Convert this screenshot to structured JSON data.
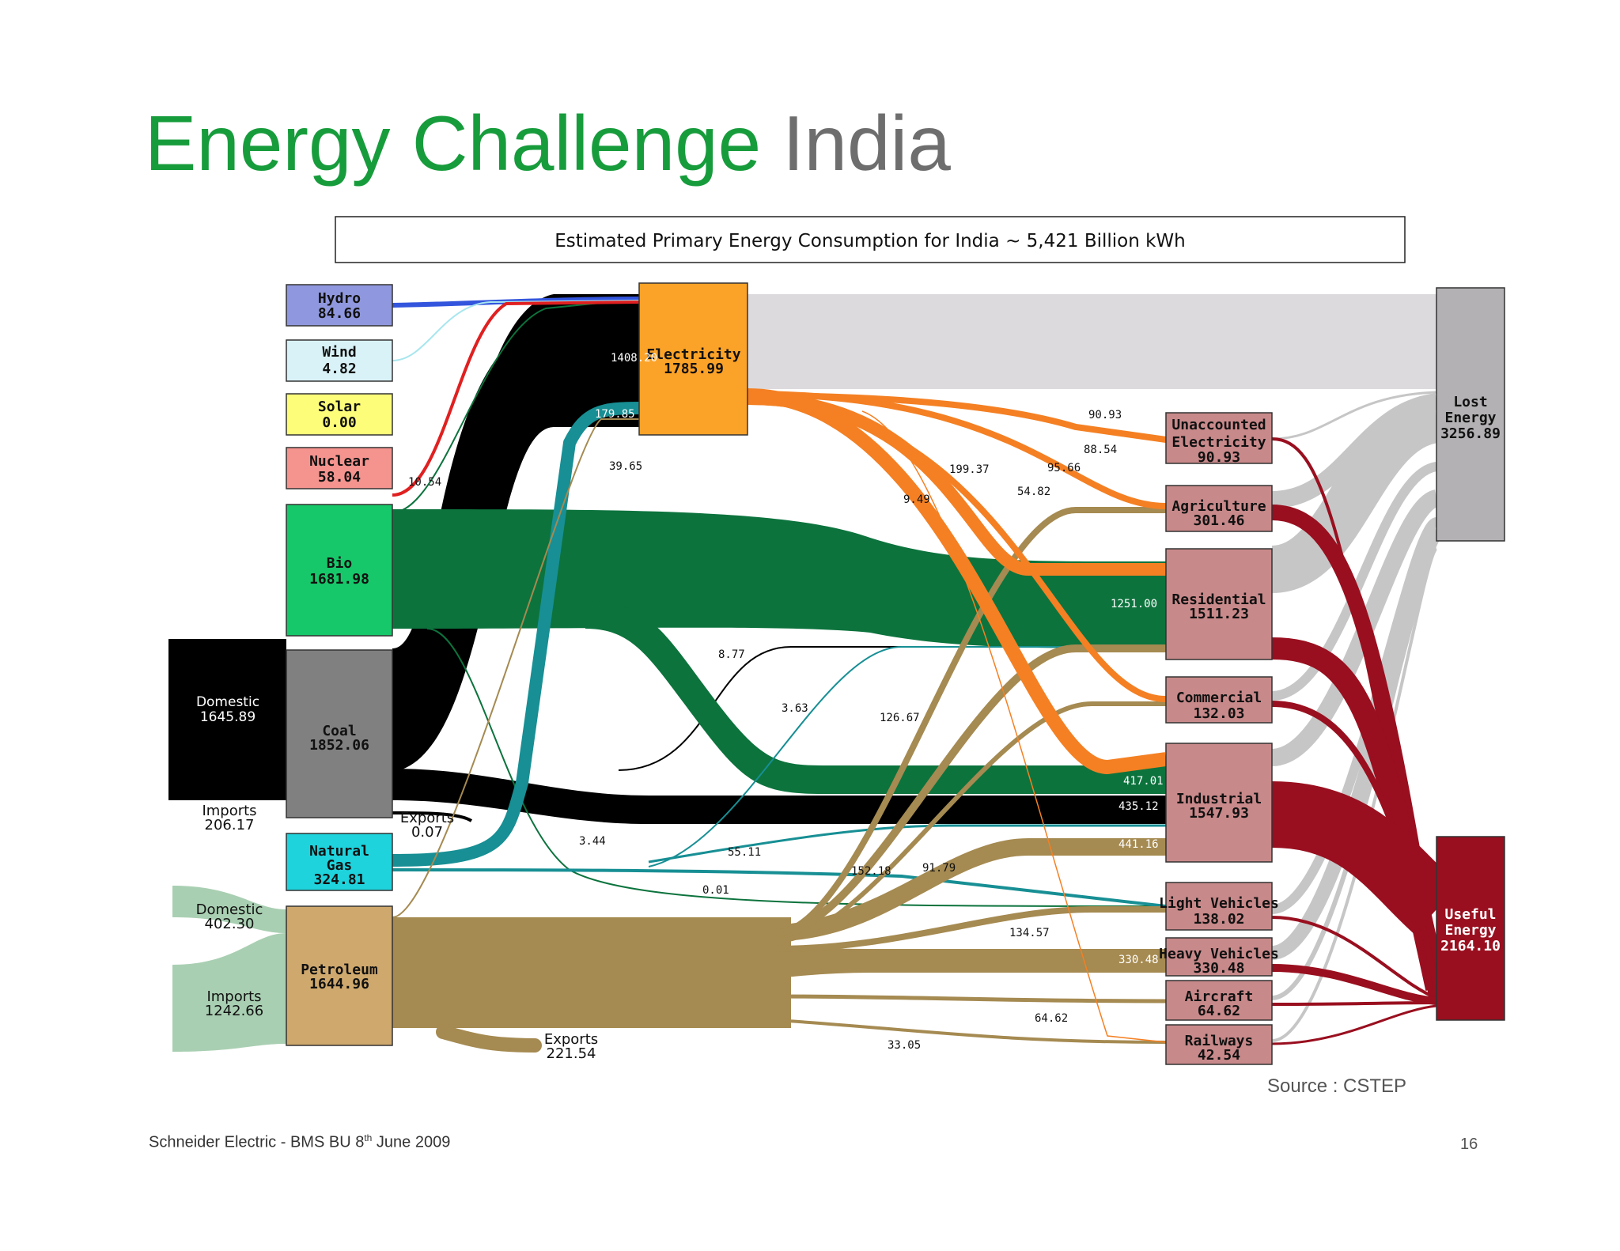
{
  "slide": {
    "title_green": "Energy Challenge",
    "title_grey": "India",
    "source": "Source : CSTEP",
    "footer_left_a": "Schneider Electric - BMS BU 8",
    "footer_left_sup": "th",
    "footer_left_b": " June 2009",
    "page_number": "16"
  },
  "diagram": {
    "header": "Estimated Primary Energy Consumption for India ~ 5,421 Billion kWh",
    "nodes": {
      "hydro": {
        "name": "Hydro",
        "value": "84.66",
        "color": "#8f98de"
      },
      "wind": {
        "name": "Wind",
        "value": "4.82",
        "color": "#d9f2f7"
      },
      "solar": {
        "name": "Solar",
        "value": "0.00",
        "color": "#fdfd7a"
      },
      "nuclear": {
        "name": "Nuclear",
        "value": "58.04",
        "color": "#f5948f"
      },
      "bio": {
        "name": "Bio",
        "value": "1681.98",
        "color": "#17c86a"
      },
      "coal": {
        "name": "Coal",
        "value": "1852.06",
        "color": "#808080"
      },
      "gas": {
        "name1": "Natural",
        "name2": "Gas",
        "value": "324.81",
        "color": "#1fd3dd"
      },
      "petroleum": {
        "name": "Petroleum",
        "value": "1644.96",
        "color": "#cfa86d"
      },
      "electricity": {
        "name": "Electricity",
        "value": "1785.99",
        "color": "#fba228"
      },
      "unaccounted": {
        "name1": "Unaccounted",
        "name2": "Electricity",
        "value": "90.93",
        "color": "#c8898a"
      },
      "agriculture": {
        "name": "Agriculture",
        "value": "301.46",
        "color": "#c8898a"
      },
      "residential": {
        "name": "Residential",
        "value": "1511.23",
        "color": "#c8898a"
      },
      "commercial": {
        "name": "Commercial",
        "value": "132.03",
        "color": "#c8898a"
      },
      "industrial": {
        "name": "Industrial",
        "value": "1547.93",
        "color": "#c8898a"
      },
      "light_vehicles": {
        "name": "Light Vehicles",
        "value": "138.02",
        "color": "#c8898a"
      },
      "heavy_vehicles": {
        "name": "Heavy Vehicles",
        "value": "330.48",
        "color": "#c8898a"
      },
      "aircraft": {
        "name": "Aircraft",
        "value": "64.62",
        "color": "#c8898a"
      },
      "railways": {
        "name": "Railways",
        "value": "42.54",
        "color": "#c8898a"
      },
      "lost_energy": {
        "name1": "Lost",
        "name2": "Energy",
        "value": "3256.89",
        "color": "#b3b1b3"
      },
      "useful_energy": {
        "name1": "Useful",
        "name2": "Energy",
        "value": "2164.10",
        "color": "#990f1f"
      }
    },
    "sources": {
      "coal_domestic": {
        "label": "Domestic",
        "value": "1645.89"
      },
      "coal_imports": {
        "label": "Imports",
        "value": "206.17"
      },
      "coal_exports": {
        "label": "Exports",
        "value": "0.07"
      },
      "pet_domestic": {
        "label": "Domestic",
        "value": "402.30"
      },
      "pet_imports": {
        "label": "Imports",
        "value": "1242.66"
      },
      "pet_exports": {
        "label": "Exports",
        "value": "221.54"
      }
    },
    "flow_values": {
      "coal_to_elec": "1408.20",
      "gas_to_elec": "179.85",
      "pet_to_elec": "39.65",
      "bio_to_elec": "10.54",
      "elec_to_unacc": "90.93",
      "elec_to_agri": "88.54",
      "elec_to_res": "199.37",
      "elec_to_comm": "95.66",
      "elec_to_ind": "54.82",
      "elec_to_rail": "9.49",
      "bio_to_res": "1251.00",
      "bio_to_ind": "417.01",
      "coal_to_ind": "435.12",
      "pet_to_ind": "441.16",
      "coal_to_comm": "8.77",
      "coal_to_res": "3.63",
      "pet_to_res": "126.67",
      "bio_to_lv": "3.44",
      "gas_to_ind": "55.11",
      "coal_to_lv": "0.01",
      "pet_to_agri": "152.18",
      "pet_to_comm": "91.79",
      "pet_to_lv": "134.57",
      "pet_to_hv": "330.48",
      "pet_to_air": "64.62",
      "pet_to_rail": "33.05"
    }
  }
}
